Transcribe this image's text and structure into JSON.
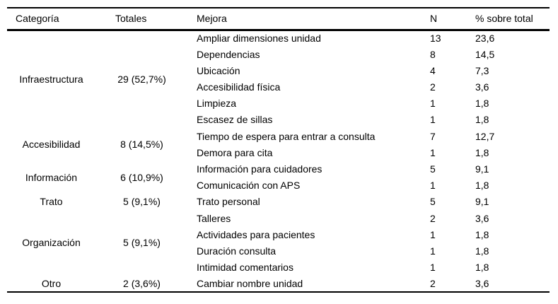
{
  "table": {
    "columns": [
      {
        "key": "categoria",
        "label": "Categoría"
      },
      {
        "key": "totales",
        "label": "Totales"
      },
      {
        "key": "mejora",
        "label": "Mejora"
      },
      {
        "key": "n",
        "label": "N"
      },
      {
        "key": "pct",
        "label": "% sobre total"
      }
    ],
    "sections": [
      {
        "category": "Infraestructura",
        "totals": "29 (52,7%)",
        "items": [
          {
            "mejora": "Ampliar dimensiones unidad",
            "n": "13",
            "pct": "23,6"
          },
          {
            "mejora": "Dependencias",
            "n": "8",
            "pct": "14,5"
          },
          {
            "mejora": "Ubicación",
            "n": "4",
            "pct": "7,3"
          },
          {
            "mejora": "Accesibilidad física",
            "n": "2",
            "pct": "3,6"
          },
          {
            "mejora": "Limpieza",
            "n": "1",
            "pct": "1,8"
          },
          {
            "mejora": "Escasez de sillas",
            "n": "1",
            "pct": "1,8"
          }
        ]
      },
      {
        "category": "Accesibilidad",
        "totals": "8 (14,5%)",
        "items": [
          {
            "mejora": "Tiempo de espera para entrar a consulta",
            "n": "7",
            "pct": "12,7"
          },
          {
            "mejora": "Demora para cita",
            "n": "1",
            "pct": "1,8"
          }
        ]
      },
      {
        "category": "Información",
        "totals": "6 (10,9%)",
        "items": [
          {
            "mejora": "Información para cuidadores",
            "n": "5",
            "pct": "9,1"
          },
          {
            "mejora": "Comunicación con APS",
            "n": "1",
            "pct": "1,8"
          }
        ]
      },
      {
        "category": "Trato",
        "totals": "5 (9,1%)",
        "items": [
          {
            "mejora": "Trato personal",
            "n": "5",
            "pct": "9,1"
          }
        ]
      },
      {
        "category": "Organización",
        "totals": "5 (9,1%)",
        "items": [
          {
            "mejora": "Talleres",
            "n": "2",
            "pct": "3,6"
          },
          {
            "mejora": "Actividades para pacientes",
            "n": "1",
            "pct": "1,8"
          },
          {
            "mejora": "Duración consulta",
            "n": "1",
            "pct": "1,8"
          },
          {
            "mejora": "Intimidad comentarios",
            "n": "1",
            "pct": "1,8"
          }
        ]
      },
      {
        "category": "Otro",
        "totals": "2 (3,6%)",
        "items": [
          {
            "mejora": "Cambiar nombre unidad",
            "n": "2",
            "pct": "3,6"
          }
        ]
      }
    ],
    "colors": {
      "text": "#000000",
      "rule": "#000000",
      "background": "#ffffff"
    }
  }
}
